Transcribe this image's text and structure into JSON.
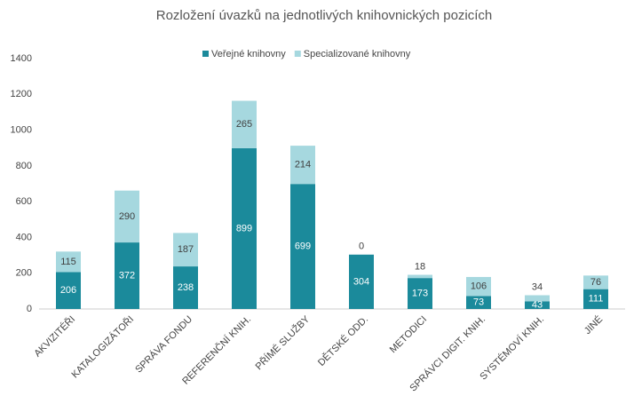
{
  "chart_data": {
    "type": "stacked-bar",
    "title": "Rozložení úvazků  na jednotlivých knihovnických pozicích",
    "categories": [
      "AKVIZITÉŘI",
      "KATALOGIZÁTOŘI",
      "SPRÁVA FONDU",
      "REFERENČNÍ KNIH.",
      "PŘÍMÉ SLUŽBY",
      "DĚTSKÉ ODD.",
      "METODICI",
      "SPRÁVCI DIGIT. KNIH.",
      "SYSTÉMOVÍ KNIH.",
      "JINÉ"
    ],
    "series": [
      {
        "name": "Veřejné knihovny",
        "color": "#1b8a9b",
        "values": [
          206,
          372,
          238,
          899,
          699,
          304,
          173,
          73,
          43,
          111
        ]
      },
      {
        "name": "Specializované knihovny",
        "color": "#a6d8df",
        "values": [
          115,
          290,
          187,
          265,
          214,
          0,
          18,
          106,
          34,
          76
        ]
      }
    ],
    "ylim": [
      0,
      1400
    ],
    "yticks": [
      0,
      200,
      400,
      600,
      800,
      1000,
      1200,
      1400
    ],
    "legend": "top",
    "grid": false
  }
}
